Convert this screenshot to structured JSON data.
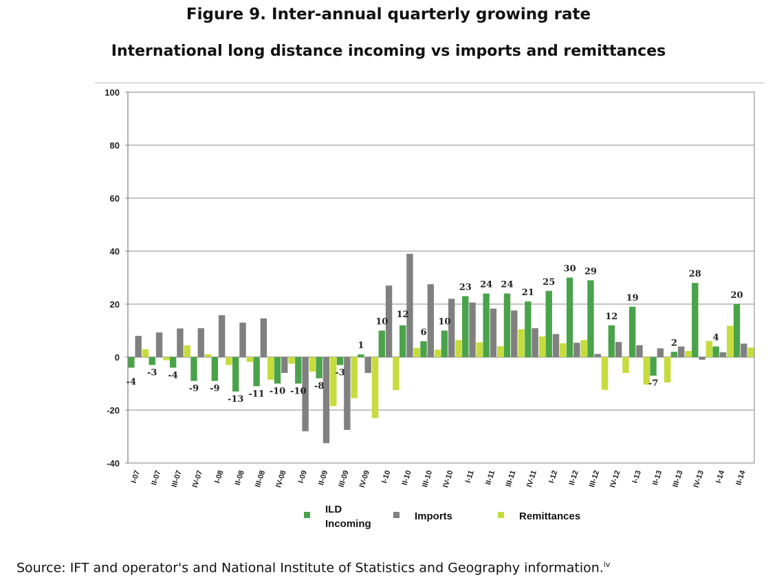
{
  "figure_title": "Figure 9. Inter-annual quarterly growing rate",
  "subtitle": "International long distance incoming vs imports and remittances",
  "source_text": "Source: IFT and operator's and National Institute of Statistics and Geography information.",
  "source_note": "iv",
  "chart_data": {
    "type": "bar",
    "title": "Inter-annual quarterly growing rate",
    "ylim": [
      -40,
      100
    ],
    "yticks": [
      -40,
      -20,
      0,
      20,
      40,
      60,
      80,
      100
    ],
    "grid": true,
    "legend_position": "bottom",
    "categories": [
      "I-07",
      "II-07",
      "III-07",
      "IV-07",
      "I-08",
      "II-08",
      "III-08",
      "IV-08",
      "I-09",
      "II-09",
      "III-09",
      "IV-09",
      "I-10",
      "II-10",
      "III-10",
      "IV-10",
      "I-11",
      "II-11",
      "III-11",
      "IV-11",
      "I-12",
      "II-12",
      "III-12",
      "IV-12",
      "I-13",
      "II-13",
      "III-13",
      "IV-13",
      "I-14",
      "II-14"
    ],
    "series": [
      {
        "name": "ILD Incoming",
        "legend_lines": [
          "ILD",
          "Incoming"
        ],
        "color": "#4aa34a",
        "values": [
          -4,
          -3,
          -4,
          -9,
          -9,
          -13,
          -11,
          -10,
          -10,
          -8,
          -3,
          1,
          10,
          12,
          6,
          10,
          23,
          24,
          24,
          21,
          25,
          30,
          29,
          12,
          19,
          -7,
          2,
          28,
          4,
          20
        ]
      },
      {
        "name": "Imports",
        "color": "#808080",
        "values": [
          8,
          9.3,
          10.8,
          10.9,
          15.8,
          13,
          14.6,
          -6,
          -28,
          -32.5,
          -27.5,
          -6,
          27,
          39,
          27.5,
          22,
          20.6,
          18.3,
          17.6,
          10.9,
          8.7,
          5.4,
          1.2,
          5.7,
          4.5,
          3.3,
          4,
          -1,
          1.8,
          5.1
        ]
      },
      {
        "name": "Remittances",
        "color": "#c6dc3c",
        "values": [
          3,
          -1.2,
          4.4,
          1.1,
          -3,
          -1.8,
          -8.5,
          -2.5,
          -5.5,
          -18.5,
          -15.5,
          -23,
          -12.5,
          3.5,
          2.8,
          6.4,
          5.6,
          4.1,
          10.5,
          7.8,
          5.2,
          6.4,
          -12.4,
          -6,
          -10.4,
          -9.6,
          2.3,
          6.1,
          11.8,
          3.6
        ]
      }
    ],
    "data_labels": [
      -4,
      -3,
      -4,
      -9,
      -9,
      -13,
      -11,
      -10,
      -10,
      -8,
      -3,
      1,
      10,
      12,
      6,
      10,
      23,
      24,
      24,
      21,
      25,
      30,
      29,
      12,
      19,
      -7,
      2,
      28,
      4,
      20
    ]
  }
}
